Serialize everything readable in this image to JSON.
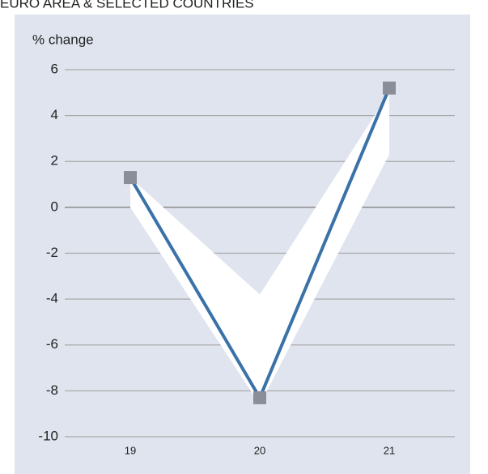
{
  "chart_data": {
    "type": "line",
    "title": "EURO AREA & SELECTED COUNTRIES",
    "y_label": "% change",
    "categories": [
      "19",
      "20",
      "21"
    ],
    "values": [
      1.3,
      -8.3,
      5.2
    ],
    "color": "#3a72a8",
    "marker_color": "#8a8e98",
    "band_low": [
      0,
      -8.6,
      2.3
    ],
    "band_high": [
      1.3,
      -3.8,
      5.0
    ],
    "band_color": "#ffffff",
    "ylim": [
      -10,
      6
    ],
    "yticks": [
      -10,
      -8,
      -6,
      -4,
      -2,
      0,
      2,
      4,
      6
    ],
    "grid": true
  }
}
